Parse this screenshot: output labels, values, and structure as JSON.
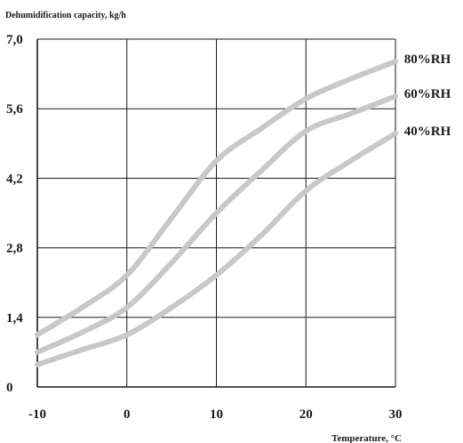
{
  "chart_data": {
    "type": "line",
    "ylabel": "Dehumidification capacity, kg/h",
    "xlabel": "Temperature, °C",
    "xlim": [
      -10,
      30
    ],
    "ylim": [
      0,
      7
    ],
    "x_ticks": [
      -10,
      0,
      10,
      20,
      30
    ],
    "x_tick_labels": [
      "-10",
      "0",
      "10",
      "20",
      "30"
    ],
    "y_ticks": [
      0,
      1.4,
      2.8,
      4.2,
      5.6,
      7.0
    ],
    "y_tick_labels": [
      "0",
      "1,4",
      "2,8",
      "4,2",
      "5,6",
      "7,0"
    ],
    "grid": true,
    "series": [
      {
        "name": "80%RH",
        "x": [
          -10,
          -5,
          0,
          5,
          10,
          15,
          20,
          25,
          30
        ],
        "y": [
          1.05,
          1.6,
          2.25,
          3.4,
          4.55,
          5.2,
          5.8,
          6.2,
          6.55
        ]
      },
      {
        "name": "60%RH",
        "x": [
          -10,
          -5,
          0,
          5,
          10,
          15,
          20,
          25,
          30
        ],
        "y": [
          0.7,
          1.1,
          1.6,
          2.5,
          3.5,
          4.35,
          5.15,
          5.5,
          5.85
        ]
      },
      {
        "name": "40%RH",
        "x": [
          -10,
          -5,
          0,
          5,
          10,
          15,
          20,
          25,
          30
        ],
        "y": [
          0.45,
          0.75,
          1.05,
          1.6,
          2.25,
          3.05,
          3.95,
          4.55,
          5.1
        ]
      }
    ],
    "line_color": "#c8c8c8",
    "grid_color": "#1a1a1a"
  }
}
